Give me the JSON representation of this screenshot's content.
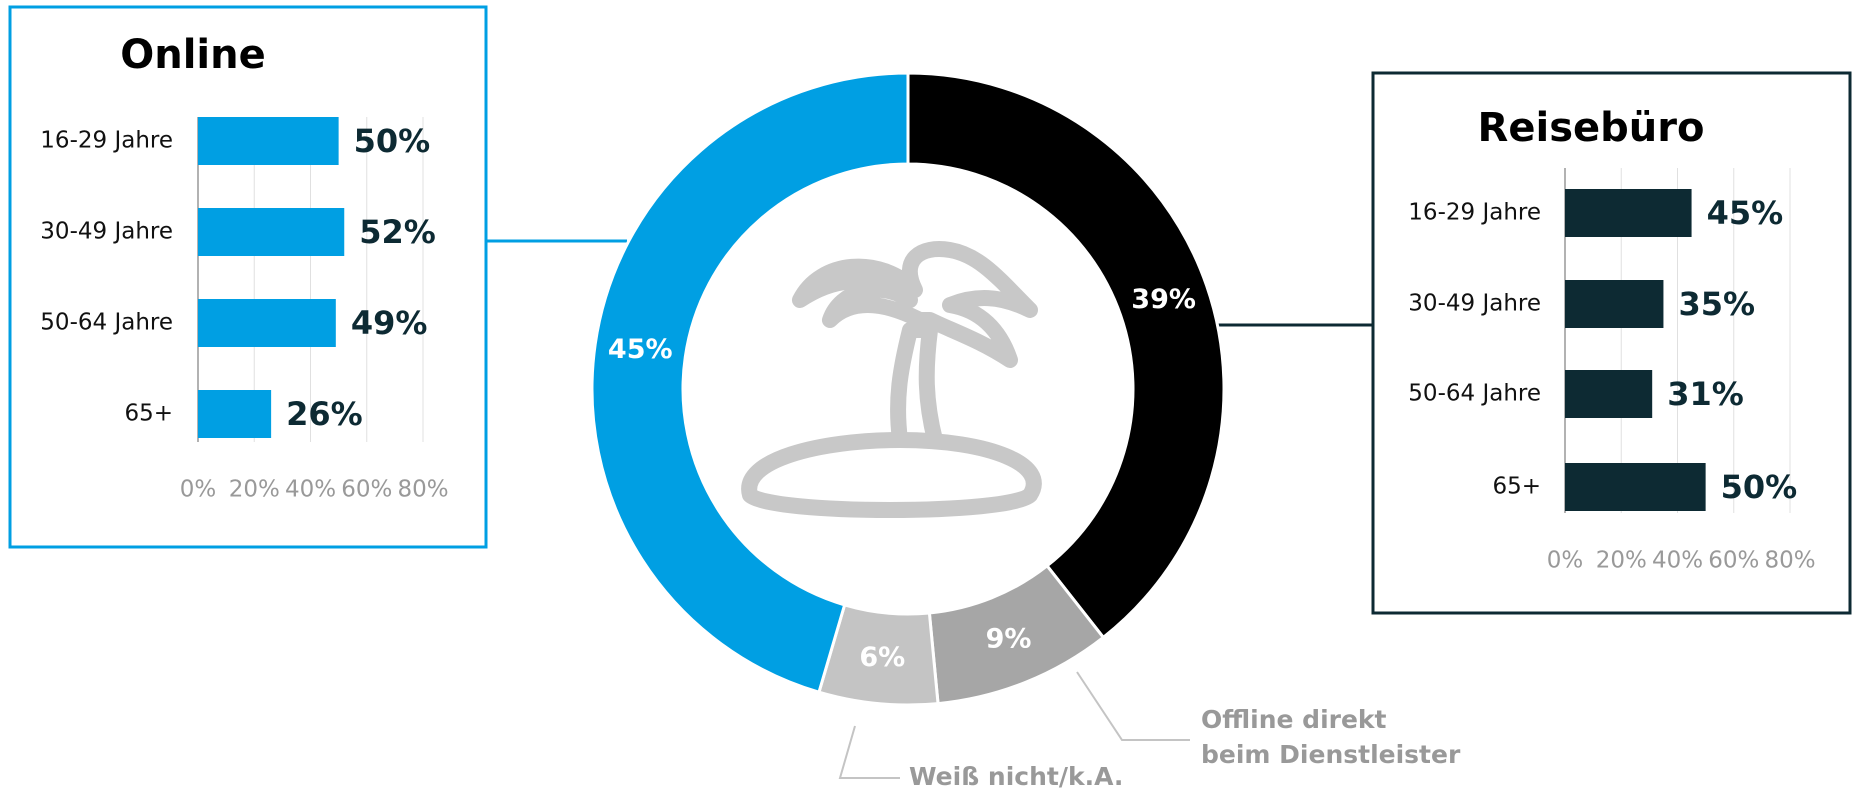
{
  "chart_data": [
    {
      "type": "bar",
      "orientation": "horizontal",
      "title": "Online",
      "categories": [
        "16-29 Jahre",
        "30-49 Jahre",
        "50-64 Jahre",
        "65+"
      ],
      "values": [
        50,
        52,
        49,
        26
      ],
      "value_labels": [
        "50%",
        "52%",
        "49%",
        "26%"
      ],
      "color": "#009fe3",
      "xlim": [
        0,
        80
      ],
      "xticks": [
        {
          "value": 0,
          "label": "0%"
        },
        {
          "value": 20,
          "label": "20%"
        },
        {
          "value": 40,
          "label": "40%"
        },
        {
          "value": 60,
          "label": "60%"
        },
        {
          "value": 80,
          "label": "80%"
        }
      ],
      "grid": true
    },
    {
      "type": "pie",
      "donut": true,
      "categories": [
        null,
        "Offline direkt beim Dienstleister",
        "Weiß nicht/k.A.",
        null
      ],
      "values": [
        39,
        9,
        6,
        45
      ],
      "value_labels": [
        "39%",
        "9%",
        "6%",
        "45%"
      ],
      "colors": [
        "#000000",
        "#a6a6a6",
        "#c4c4c4",
        "#009fe3"
      ]
    },
    {
      "type": "bar",
      "orientation": "horizontal",
      "title": "Reisebüro",
      "categories": [
        "16-29 Jahre",
        "30-49 Jahre",
        "50-64 Jahre",
        "65+"
      ],
      "values": [
        45,
        35,
        31,
        50
      ],
      "value_labels": [
        "45%",
        "35%",
        "31%",
        "50%"
      ],
      "color": "#0d2a33",
      "xlim": [
        0,
        80
      ],
      "xticks": [
        {
          "value": 0,
          "label": "0%"
        },
        {
          "value": 20,
          "label": "20%"
        },
        {
          "value": 40,
          "label": "40%"
        },
        {
          "value": 60,
          "label": "60%"
        },
        {
          "value": 80,
          "label": "80%"
        }
      ],
      "grid": true
    }
  ]
}
